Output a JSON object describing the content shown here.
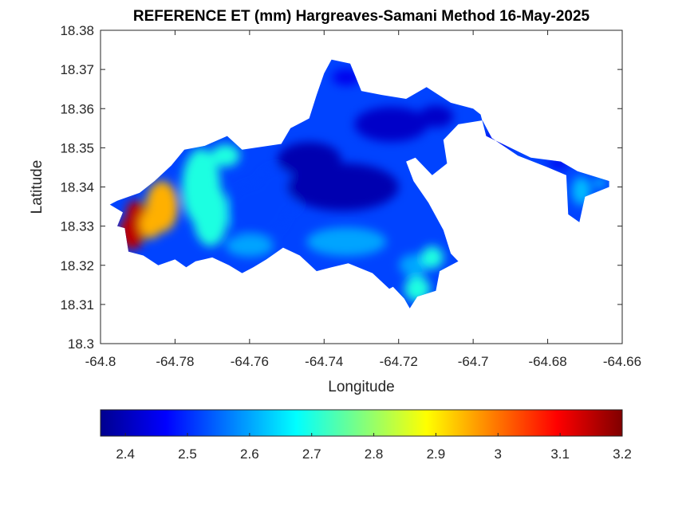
{
  "chart_data": {
    "type": "heatmap",
    "title": "REFERENCE ET (mm) Hargreaves-Samani Method  16-May-2025",
    "xlabel": "Longitude",
    "ylabel": "Latitude",
    "xlim": [
      -64.8,
      -64.66
    ],
    "ylim": [
      18.3,
      18.38
    ],
    "xticks": [
      -64.8,
      -64.78,
      -64.76,
      -64.74,
      -64.72,
      -64.7,
      -64.68,
      -64.66
    ],
    "xtick_labels": [
      "-64.8",
      "-64.78",
      "-64.76",
      "-64.74",
      "-64.72",
      "-64.7",
      "-64.68",
      "-64.66"
    ],
    "yticks": [
      18.3,
      18.31,
      18.32,
      18.33,
      18.34,
      18.35,
      18.36,
      18.37,
      18.38
    ],
    "ytick_labels": [
      "18.3",
      "18.31",
      "18.32",
      "18.33",
      "18.34",
      "18.35",
      "18.36",
      "18.37",
      "18.38"
    ],
    "grid": false,
    "colormap": "jet",
    "colorbar": {
      "orientation": "horizontal",
      "location": "bottom",
      "clim": [
        2.36,
        3.2
      ],
      "ticks": [
        2.4,
        2.5,
        2.6,
        2.7,
        2.8,
        2.9,
        3.0,
        3.1,
        3.2
      ],
      "tick_labels": [
        "2.4",
        "2.5",
        "2.6",
        "2.7",
        "2.8",
        "2.9",
        "3",
        "3.1",
        "3.2"
      ]
    },
    "approximate_regions": [
      {
        "region": "far west coast",
        "value": 3.15
      },
      {
        "region": "west",
        "value": 2.95
      },
      {
        "region": "west-central",
        "value": 2.7
      },
      {
        "region": "central-west",
        "value": 2.52
      },
      {
        "region": "central",
        "value": 2.4
      },
      {
        "region": "north-central",
        "value": 2.42
      },
      {
        "region": "south-central",
        "value": 2.6
      },
      {
        "region": "south-east lobe",
        "value": 2.7
      },
      {
        "region": "east strip",
        "value": 2.45
      },
      {
        "region": "east tip",
        "value": 2.62
      }
    ]
  }
}
